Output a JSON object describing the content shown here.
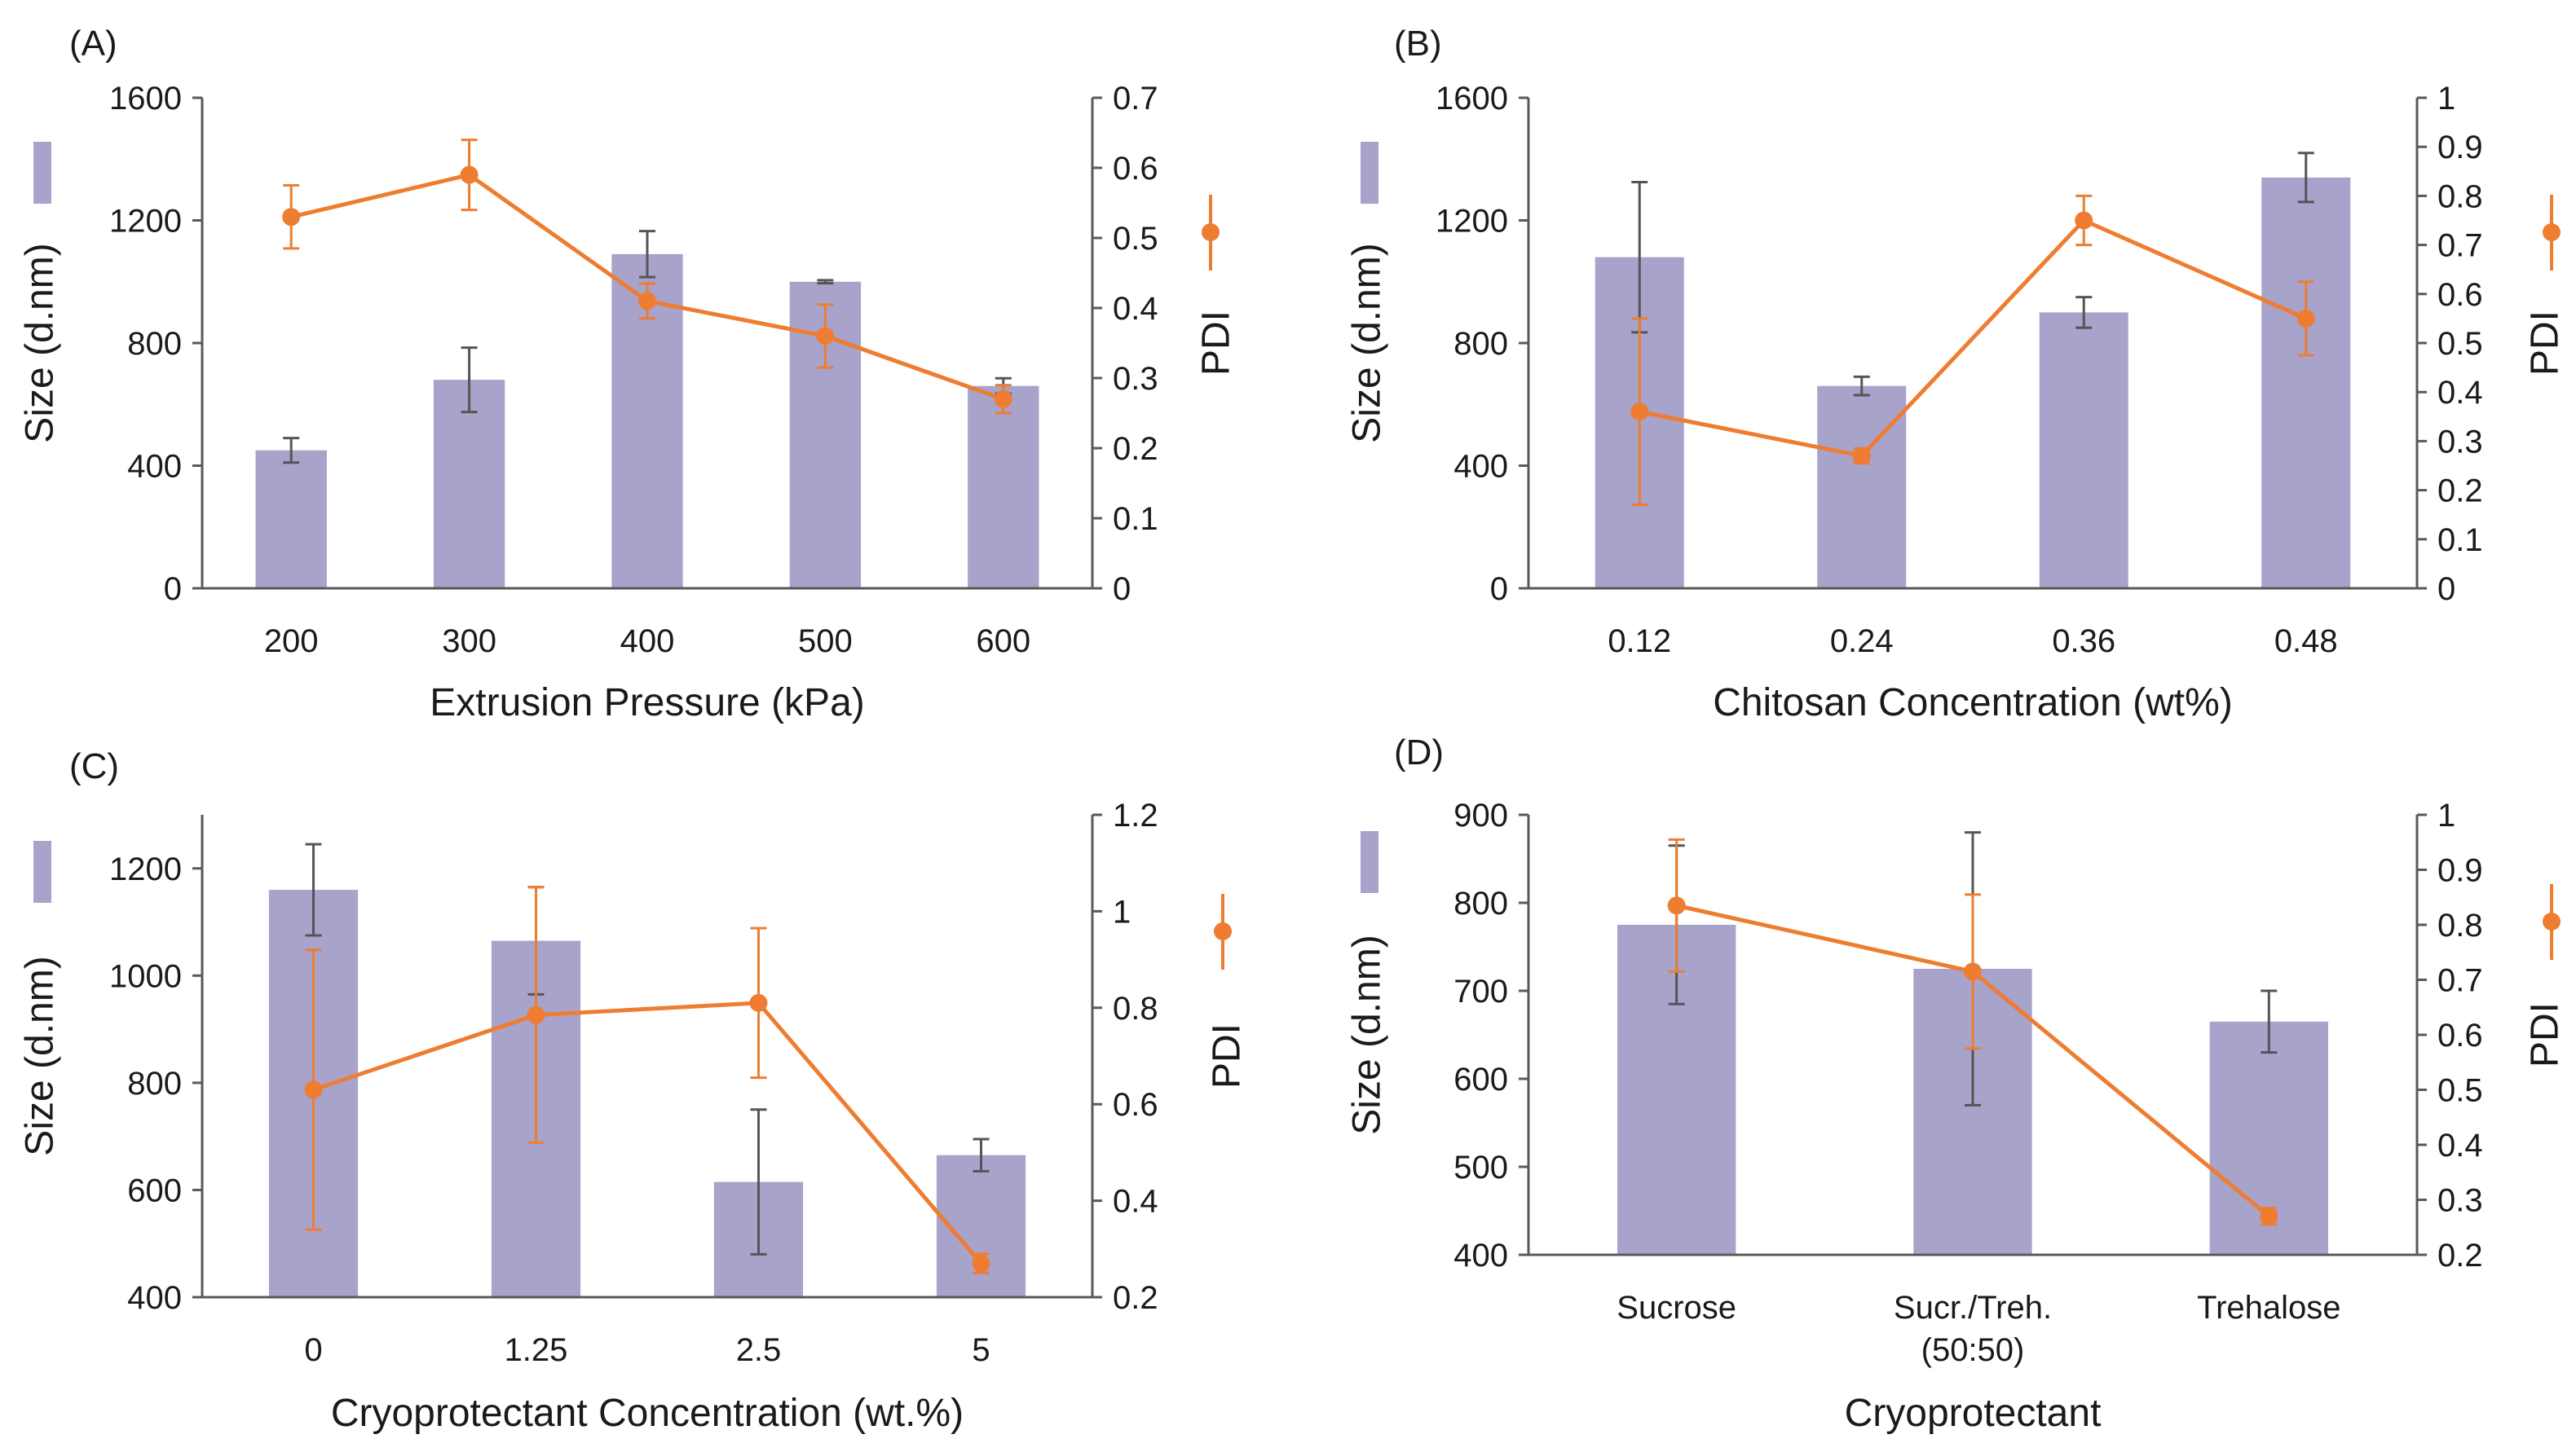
{
  "colors": {
    "bar": "#a7a3cb",
    "pdi": "#ee7d31",
    "bar_error": "#555555",
    "axis": "#595959"
  },
  "chart_data": [
    {
      "type": "bar",
      "panel_label": "(A)",
      "xlabel": "Extrusion Pressure (kPa)",
      "ylabel": "Size (d.nm)",
      "y2label": "PDI",
      "categories": [
        "200",
        "300",
        "400",
        "500",
        "600"
      ],
      "ylim": [
        0,
        1600
      ],
      "yticks": [
        0,
        400,
        800,
        1200,
        1600
      ],
      "y2lim": [
        0,
        0.7
      ],
      "y2ticks": [
        0,
        0.1,
        0.2,
        0.3,
        0.4,
        0.5,
        0.6,
        0.7
      ],
      "y2tick_labels": [
        "0",
        "0.1",
        "0.2",
        "0.3",
        "0.4",
        "0.5",
        "0.6",
        "0.7"
      ],
      "series": [
        {
          "name": "Size",
          "kind": "bar",
          "axis": "left",
          "values": [
            450,
            680,
            1090,
            1000,
            660
          ],
          "errors": [
            40,
            105,
            75,
            5,
            25
          ]
        },
        {
          "name": "PDI",
          "kind": "line",
          "axis": "right",
          "values": [
            0.53,
            0.59,
            0.41,
            0.36,
            0.27
          ],
          "errors": [
            0.045,
            0.05,
            0.025,
            0.045,
            0.02
          ]
        }
      ]
    },
    {
      "type": "bar",
      "panel_label": "(B)",
      "xlabel": "Chitosan Concentration (wt%)",
      "ylabel": "Size (d.nm)",
      "y2label": "PDI",
      "categories": [
        "0.12",
        "0.24",
        "0.36",
        "0.48"
      ],
      "ylim": [
        0,
        1600
      ],
      "yticks": [
        0,
        400,
        800,
        1200,
        1600
      ],
      "y2lim": [
        0,
        1
      ],
      "y2ticks": [
        0,
        0.1,
        0.2,
        0.3,
        0.4,
        0.5,
        0.6,
        0.7,
        0.8,
        0.9,
        1
      ],
      "y2tick_labels": [
        "0",
        "0.1",
        "0.2",
        "0.3",
        "0.4",
        "0.5",
        "0.6",
        "0.7",
        "0.8",
        "0.9",
        "1"
      ],
      "series": [
        {
          "name": "Size",
          "kind": "bar",
          "axis": "left",
          "values": [
            1080,
            660,
            900,
            1340
          ],
          "errors": [
            245,
            30,
            50,
            80
          ]
        },
        {
          "name": "PDI",
          "kind": "line",
          "axis": "right",
          "values": [
            0.36,
            0.27,
            0.75,
            0.55
          ],
          "errors": [
            0.19,
            0.015,
            0.05,
            0.075
          ]
        }
      ]
    },
    {
      "type": "bar",
      "panel_label": "(C)",
      "xlabel": "Cryoprotectant Concentration (wt.%)",
      "ylabel": "Size (d.nm)",
      "y2label": "PDI",
      "categories": [
        "0",
        "1.25",
        "2.5",
        "5"
      ],
      "ylim": [
        400,
        1300
      ],
      "yticks": [
        400,
        600,
        800,
        1000,
        1200
      ],
      "y2lim": [
        0.2,
        1.2
      ],
      "y2ticks": [
        0.2,
        0.4,
        0.6,
        0.8,
        1,
        1.2
      ],
      "y2tick_labels": [
        "0.2",
        "0.4",
        "0.6",
        "0.8",
        "1",
        "1.2"
      ],
      "series": [
        {
          "name": "Size",
          "kind": "bar",
          "axis": "left",
          "values": [
            1160,
            1065,
            615,
            665
          ],
          "errors": [
            85,
            100,
            135,
            30
          ]
        },
        {
          "name": "PDI",
          "kind": "line",
          "axis": "right",
          "values": [
            0.63,
            0.785,
            0.81,
            0.27
          ],
          "errors": [
            0.29,
            0.265,
            0.155,
            0.02
          ]
        }
      ]
    },
    {
      "type": "bar",
      "panel_label": "(D)",
      "xlabel": "Cryoprotectant",
      "ylabel": "Size (d.nm)",
      "y2label": "PDI",
      "categories": [
        [
          "Sucrose"
        ],
        [
          "Sucr./Treh.",
          "(50:50)"
        ],
        [
          "Trehalose"
        ]
      ],
      "ylim": [
        400,
        900
      ],
      "yticks": [
        400,
        500,
        600,
        700,
        800,
        900
      ],
      "y2lim": [
        0.2,
        1
      ],
      "y2ticks": [
        0.2,
        0.3,
        0.4,
        0.5,
        0.6,
        0.7,
        0.8,
        0.9,
        1
      ],
      "y2tick_labels": [
        "0.2",
        "0.3",
        "0.4",
        "0.5",
        "0.6",
        "0.7",
        "0.8",
        "0.9",
        "1"
      ],
      "series": [
        {
          "name": "Size",
          "kind": "bar",
          "axis": "left",
          "values": [
            775,
            725,
            665
          ],
          "errors": [
            90,
            155,
            35
          ]
        },
        {
          "name": "PDI",
          "kind": "line",
          "axis": "right",
          "values": [
            0.835,
            0.715,
            0.27
          ],
          "errors": [
            0.12,
            0.14,
            0.015
          ]
        }
      ]
    }
  ]
}
